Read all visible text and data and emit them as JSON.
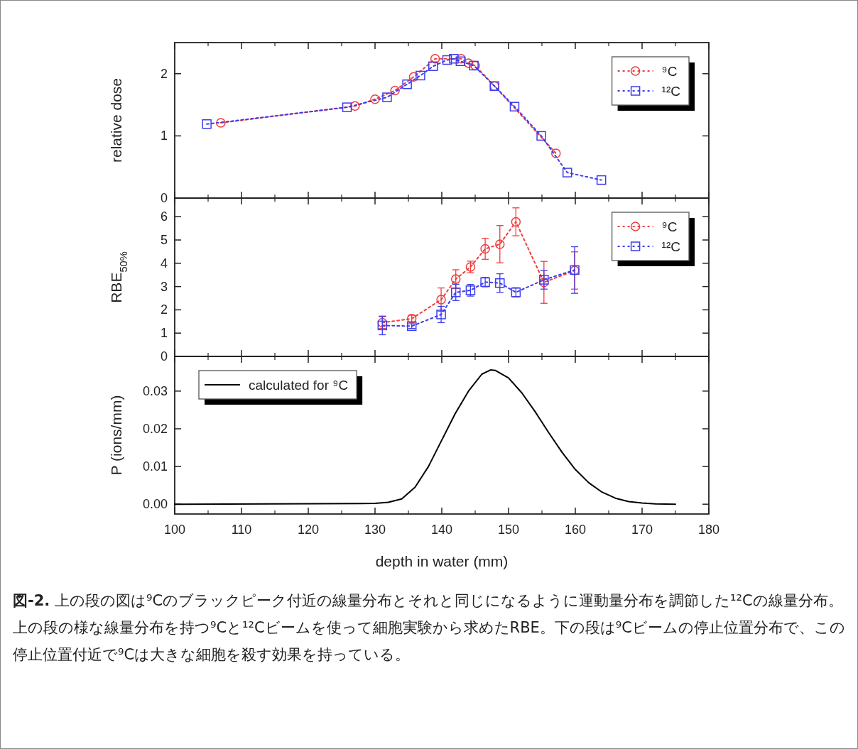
{
  "chart_data": [
    {
      "type": "line",
      "ylabel": "relative dose",
      "xlim": [
        100,
        180
      ],
      "xticks": [
        100,
        110,
        120,
        130,
        140,
        150,
        160,
        170,
        180
      ],
      "ylim": [
        0,
        2.5
      ],
      "yticks": [
        0,
        1,
        2
      ],
      "tick_labels": "y",
      "legend": "top right",
      "line_style": "dotted",
      "series": [
        {
          "name": "⁹C",
          "color": "#f03c3c",
          "marker": "circle",
          "x": [
            106.9,
            127.0,
            130.0,
            133.0,
            135.8,
            139.0,
            142.9,
            144.0,
            145.0,
            147.9,
            157.1
          ],
          "values": [
            1.21,
            1.48,
            1.59,
            1.73,
            1.95,
            2.24,
            2.24,
            2.17,
            2.13,
            1.8,
            0.72
          ]
        },
        {
          "name": "¹²C",
          "color": "#3c3cf0",
          "marker": "square",
          "x": [
            104.8,
            125.8,
            131.8,
            134.8,
            136.8,
            138.7,
            140.8,
            141.8,
            142.8,
            144.8,
            147.9,
            150.9,
            154.9,
            158.8,
            163.9
          ],
          "values": [
            1.19,
            1.46,
            1.62,
            1.83,
            1.97,
            2.12,
            2.22,
            2.24,
            2.2,
            2.13,
            1.8,
            1.47,
            1.0,
            0.41,
            0.29
          ]
        }
      ]
    },
    {
      "type": "line",
      "ylabel": "RBE$_{50%}$",
      "xlim": [
        100,
        180
      ],
      "xticks": [
        100,
        110,
        120,
        130,
        140,
        150,
        160,
        170,
        180
      ],
      "ylim": [
        0,
        6.8
      ],
      "yticks": [
        0,
        1,
        2,
        3,
        4,
        5,
        6
      ],
      "tick_labels": "y",
      "legend": "top right",
      "line_style": "dotted",
      "series": [
        {
          "name": "⁹C",
          "color": "#f03c3c",
          "marker": "circle",
          "x": [
            131.1,
            135.5,
            139.9,
            142.1,
            144.3,
            146.5,
            148.7,
            151.1,
            155.3,
            159.9
          ],
          "values": [
            1.45,
            1.62,
            2.44,
            3.32,
            3.84,
            4.62,
            4.82,
            5.78,
            3.18,
            3.69
          ],
          "errors": [
            0.25,
            0.15,
            0.5,
            0.4,
            0.25,
            0.45,
            0.8,
            0.6,
            0.9,
            0.8
          ]
        },
        {
          "name": "¹²C",
          "color": "#3c3cf0",
          "marker": "square",
          "x": [
            131.1,
            135.5,
            139.9,
            142.1,
            144.3,
            146.5,
            148.7,
            151.1,
            155.3,
            159.9
          ],
          "values": [
            1.33,
            1.3,
            1.8,
            2.75,
            2.84,
            3.19,
            3.15,
            2.75,
            3.29,
            3.71
          ],
          "errors": [
            0.4,
            0.1,
            0.35,
            0.35,
            0.25,
            0.2,
            0.4,
            0.2,
            0.4,
            1.0
          ]
        }
      ]
    },
    {
      "type": "line",
      "xlabel": "depth in water (mm)",
      "ylabel": "P (ions/mm)",
      "xlim": [
        100,
        180
      ],
      "xticks": [
        100,
        110,
        120,
        130,
        140,
        150,
        160,
        170,
        180
      ],
      "ylim": [
        -0.0026,
        0.0392
      ],
      "yticks": [
        {
          "value": 0,
          "label": "0.00"
        },
        {
          "value": 0.01,
          "label": "0.01"
        },
        {
          "value": 0.02,
          "label": "0.02"
        },
        {
          "value": 0.03,
          "label": "0.03"
        }
      ],
      "legend": "top left",
      "line_style": "solid",
      "series": [
        {
          "name": "calculated for ⁹C",
          "color": "#000000",
          "marker": "none",
          "x": [
            100,
            130,
            132,
            134,
            136,
            138,
            140,
            142,
            144,
            146,
            147.3,
            148,
            150,
            152,
            154,
            156,
            158,
            160,
            162,
            164,
            166,
            168,
            170,
            172,
            175
          ],
          "values": [
            0,
            0.0002,
            0.0005,
            0.0014,
            0.0045,
            0.01,
            0.017,
            0.024,
            0.03,
            0.0345,
            0.0356,
            0.0355,
            0.0335,
            0.0295,
            0.0245,
            0.019,
            0.0138,
            0.0092,
            0.0057,
            0.0032,
            0.0016,
            0.0007,
            0.0003,
            0.0001,
            0
          ]
        }
      ],
      "annotations": [
        "図-2.",
        "上の段の図は⁹Cのブラックピーク付近の線量分布とそれと同じになるように運動量分布を調節した¹²Cの線量分布。上の段の様な線量分布を持つ⁹Cと¹²Cビームを使って細胞実験から求めたRBE。下の段は⁹Cビームの停止位置分布で、この停止位置付近で⁹Cは大きな細胞を殺す効果を持っている。"
      ]
    }
  ]
}
